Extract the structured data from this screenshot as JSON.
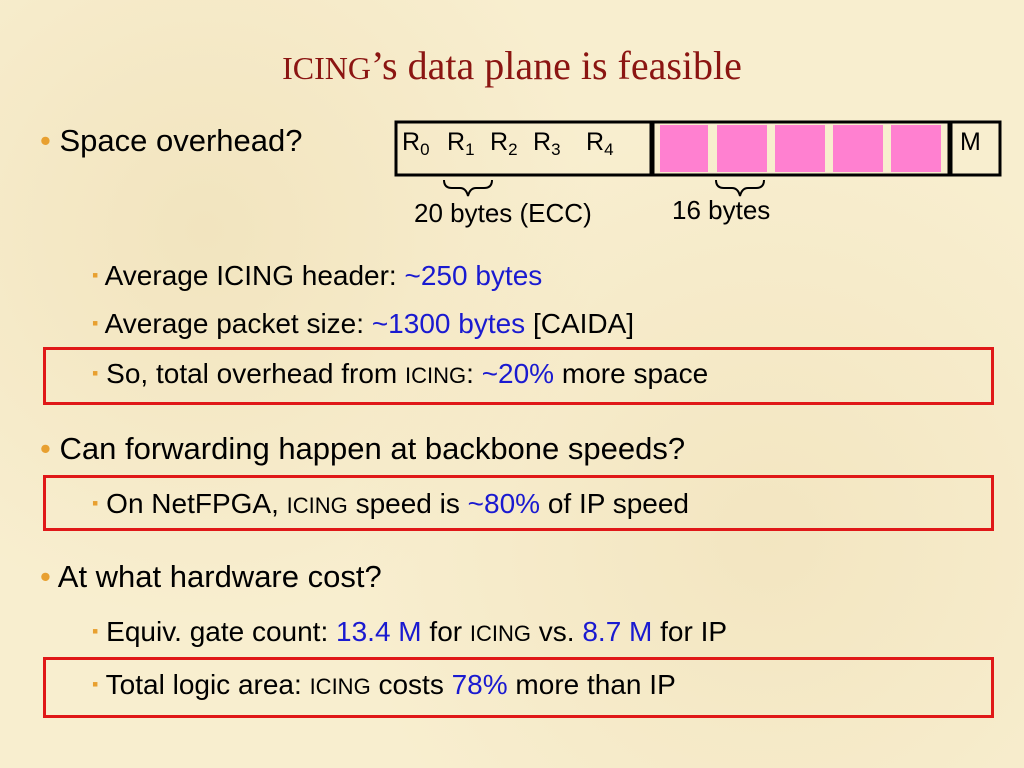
{
  "title": [
    {
      "text": "ICING",
      "style": "smallcaps"
    },
    "’s data plane is feasible"
  ],
  "diagram": {
    "fields": [
      {
        "base": "R",
        "sub": "0"
      },
      {
        "base": "R",
        "sub": "1"
      },
      {
        "base": "R",
        "sub": "2"
      },
      {
        "base": "R",
        "sub": "3"
      },
      {
        "base": "R",
        "sub": "4"
      }
    ],
    "tail": "M",
    "notes": [
      "20 bytes (ECC)",
      "16 bytes"
    ]
  },
  "bullets": [
    {
      "text": "Space overhead?",
      "items": [
        {
          "runs": [
            "Average ICING header: ",
            {
              "text": "~250 bytes",
              "style": "value"
            }
          ]
        },
        {
          "runs": [
            "Average packet size: ",
            {
              "text": "~1300 bytes",
              "style": "value"
            },
            " [CAIDA]"
          ]
        },
        {
          "runs": [
            "So, total overhead from ",
            {
              "text": "ICING",
              "style": "smallcaps"
            },
            ": ",
            {
              "text": "~20%",
              "style": "value"
            },
            " more space"
          ]
        }
      ]
    },
    {
      "text": "Can forwarding happen at backbone speeds?",
      "items": [
        {
          "runs": [
            "On NetFPGA, ",
            {
              "text": "ICING",
              "style": "smallcaps"
            },
            " speed is ",
            {
              "text": "~80%",
              "style": "value"
            },
            " of IP speed"
          ]
        }
      ]
    },
    {
      "text": "At what hardware cost?",
      "items": [
        {
          "runs": [
            "Equiv. gate count: ",
            {
              "text": "13.4 M",
              "style": "value"
            },
            " for ",
            {
              "text": "ICING",
              "style": "smallcaps"
            },
            " vs. ",
            {
              "text": "8.7 M",
              "style": "value"
            },
            " for IP"
          ]
        },
        {
          "runs": [
            "Total logic area: ",
            {
              "text": "ICING",
              "style": "smallcaps"
            },
            " costs ",
            {
              "text": "78%",
              "style": "value"
            },
            " more than IP"
          ]
        }
      ]
    }
  ]
}
